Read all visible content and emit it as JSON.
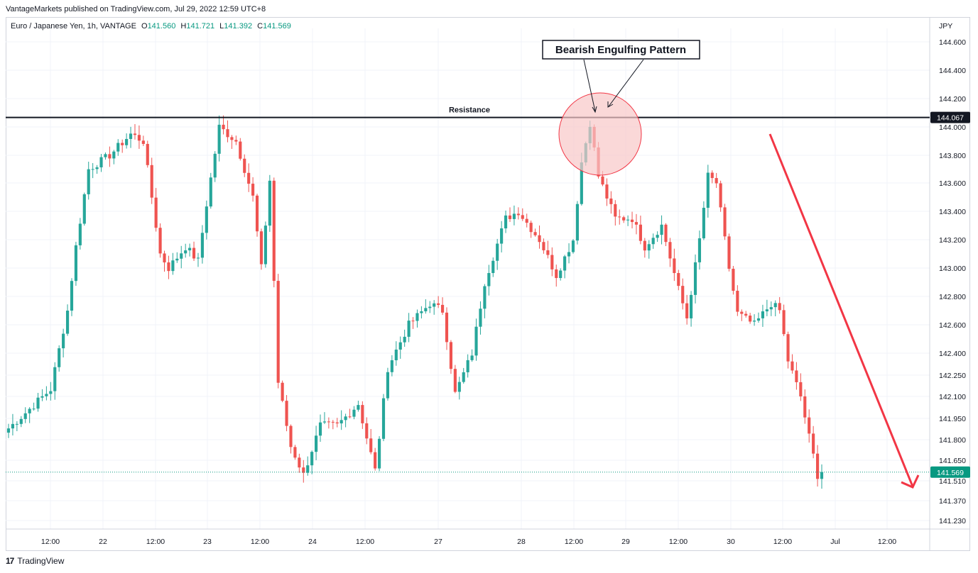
{
  "header": {
    "published": "VantageMarkets published on TradingView.com, Jul 29, 2022 12:59 UTC+8"
  },
  "legend": {
    "symbol": "Euro / Japanese Yen, 1h, VANTAGE",
    "o_label": "O",
    "o_value": "141.560",
    "h_label": "H",
    "h_value": "141.721",
    "l_label": "L",
    "l_value": "141.392",
    "c_label": "C",
    "c_value": "141.569"
  },
  "footer": {
    "logo": "17",
    "brand": "TradingView"
  },
  "chart_data": {
    "type": "candlestick",
    "currency": "JPY",
    "y_ticks": [
      144.6,
      144.4,
      144.2,
      144.0,
      143.8,
      143.6,
      143.4,
      143.2,
      143.0,
      142.8,
      142.6,
      142.4,
      142.25,
      142.1,
      141.95,
      141.8,
      141.65,
      141.51,
      141.37,
      141.23
    ],
    "y_tick_labels": [
      "144.600",
      "144.400",
      "144.200",
      "144.000",
      "143.800",
      "143.600",
      "143.400",
      "143.200",
      "143.000",
      "142.800",
      "142.600",
      "142.400",
      "142.250",
      "142.100",
      "141.950",
      "141.800",
      "141.650",
      "141.510",
      "141.370",
      "141.230"
    ],
    "x_tick_labels": [
      "12:00",
      "22",
      "12:00",
      "23",
      "12:00",
      "24",
      "12:00",
      "27",
      "28",
      "12:00",
      "29",
      "12:00",
      "30",
      "12:00",
      "Jul",
      "12:00"
    ],
    "resistance": {
      "label": "Resistance",
      "value": 144.067,
      "value_label": "144.067"
    },
    "last_price": {
      "value": 141.569,
      "value_label": "141.569"
    },
    "annotation": "Bearish Engulfing Pattern",
    "colors": {
      "up": "#26a69a",
      "down": "#ef5350",
      "arrow": "#f23645",
      "circle_fill": "#f8c8c8",
      "circle_stroke": "#f23645",
      "grid": "#f0f3fa",
      "resistance": "#131722",
      "last_price": "#089981"
    },
    "price_anchors": [
      {
        "bar": 0,
        "price": 141.88
      },
      {
        "bar": 10,
        "price": 142.15
      },
      {
        "bar": 14,
        "price": 142.7
      },
      {
        "bar": 16,
        "price": 143.15
      },
      {
        "bar": 19,
        "price": 143.7
      },
      {
        "bar": 24,
        "price": 143.8
      },
      {
        "bar": 29,
        "price": 143.95
      },
      {
        "bar": 32,
        "price": 143.9
      },
      {
        "bar": 36,
        "price": 143.1
      },
      {
        "bar": 38,
        "price": 143.0
      },
      {
        "bar": 42,
        "price": 143.15
      },
      {
        "bar": 45,
        "price": 143.05
      },
      {
        "bar": 47,
        "price": 143.45
      },
      {
        "bar": 50,
        "price": 144.0
      },
      {
        "bar": 54,
        "price": 143.9
      },
      {
        "bar": 58,
        "price": 143.5
      },
      {
        "bar": 60,
        "price": 143.0
      },
      {
        "bar": 62,
        "price": 143.62
      },
      {
        "bar": 64,
        "price": 142.2
      },
      {
        "bar": 67,
        "price": 141.75
      },
      {
        "bar": 70,
        "price": 141.55
      },
      {
        "bar": 74,
        "price": 141.9
      },
      {
        "bar": 78,
        "price": 141.9
      },
      {
        "bar": 83,
        "price": 142.05
      },
      {
        "bar": 87,
        "price": 141.58
      },
      {
        "bar": 90,
        "price": 142.3
      },
      {
        "bar": 95,
        "price": 142.6
      },
      {
        "bar": 100,
        "price": 142.75
      },
      {
        "bar": 103,
        "price": 142.7
      },
      {
        "bar": 106,
        "price": 142.12
      },
      {
        "bar": 110,
        "price": 142.4
      },
      {
        "bar": 113,
        "price": 142.9
      },
      {
        "bar": 118,
        "price": 143.35
      },
      {
        "bar": 121,
        "price": 143.4
      },
      {
        "bar": 126,
        "price": 143.2
      },
      {
        "bar": 130,
        "price": 142.95
      },
      {
        "bar": 134,
        "price": 143.2
      },
      {
        "bar": 136,
        "price": 143.75
      },
      {
        "bar": 138,
        "price": 144.03
      },
      {
        "bar": 140,
        "price": 143.65
      },
      {
        "bar": 144,
        "price": 143.35
      },
      {
        "bar": 148,
        "price": 143.35
      },
      {
        "bar": 151,
        "price": 143.15
      },
      {
        "bar": 155,
        "price": 143.3
      },
      {
        "bar": 159,
        "price": 142.85
      },
      {
        "bar": 161,
        "price": 142.65
      },
      {
        "bar": 164,
        "price": 143.2
      },
      {
        "bar": 166,
        "price": 143.65
      },
      {
        "bar": 168,
        "price": 143.6
      },
      {
        "bar": 171,
        "price": 143.0
      },
      {
        "bar": 173,
        "price": 142.68
      },
      {
        "bar": 177,
        "price": 142.6
      },
      {
        "bar": 181,
        "price": 142.75
      },
      {
        "bar": 183,
        "price": 142.7
      },
      {
        "bar": 185,
        "price": 142.35
      },
      {
        "bar": 188,
        "price": 142.1
      },
      {
        "bar": 190,
        "price": 141.82
      },
      {
        "bar": 192,
        "price": 141.55
      },
      {
        "bar": 193,
        "price": 141.569
      }
    ],
    "candle_count": 194
  }
}
